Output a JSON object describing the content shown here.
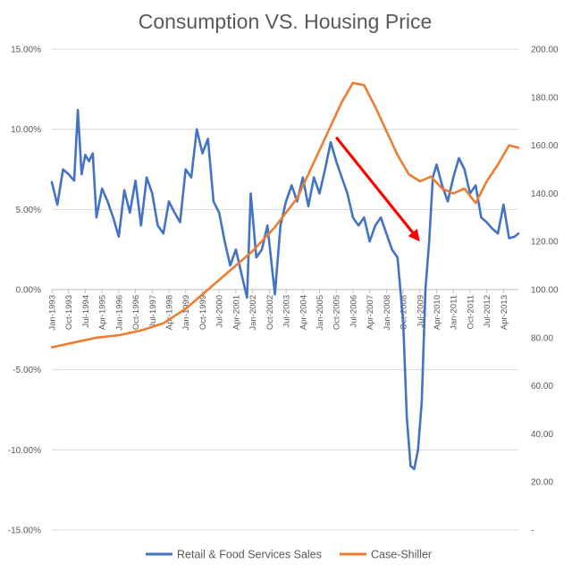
{
  "chart_data": {
    "type": "line",
    "title": "Consumption VS. Housing Price",
    "xlabel": "",
    "ylabel_left": "",
    "ylabel_right": "",
    "x_start": "Jan-1993",
    "x_end": "Dec-2013",
    "x_tick_labels": [
      "Jan-1993",
      "Oct-1993",
      "Jul-1994",
      "Apr-1995",
      "Jan-1996",
      "Oct-1996",
      "Jul-1997",
      "Apr-1998",
      "Jan-1999",
      "Oct-1999",
      "Jul-2000",
      "Apr-2001",
      "Jan-2002",
      "Oct-2002",
      "Jul-2003",
      "Apr-2004",
      "Jan-2005",
      "Oct-2005",
      "Jul-2006",
      "Apr-2007",
      "Jan-2008",
      "Oct-2008",
      "Jul-2009",
      "Apr-2010",
      "Jan-2011",
      "Oct-2011",
      "Jul-2012",
      "Apr-2013"
    ],
    "y_left": {
      "min": -0.15,
      "max": 0.15,
      "ticks": [
        "15.00%",
        "10.00%",
        "5.00%",
        "0.00%",
        "-5.00%",
        "-10.00%",
        "-15.00%"
      ]
    },
    "y_right": {
      "min": 0,
      "max": 200,
      "ticks": [
        "200.00",
        "180.00",
        "160.00",
        "140.00",
        "120.00",
        "100.00",
        "80.00",
        "60.00",
        "40.00",
        "20.00",
        "-"
      ]
    },
    "legend_position": "bottom",
    "grid": "horizontal",
    "annotation": {
      "type": "arrow",
      "color": "#ff0000",
      "from": {
        "x": "Oct-2005",
        "y_left": 0.095
      },
      "to": {
        "x": "Jul-2009",
        "y_left": 0.03
      }
    },
    "series": [
      {
        "name": "Retail & Food Services Sales",
        "axis": "left",
        "color": "#4472c4",
        "points": [
          [
            "Jan-1993",
            0.067
          ],
          [
            "Apr-1993",
            0.053
          ],
          [
            "Jul-1993",
            0.075
          ],
          [
            "Oct-1993",
            0.072
          ],
          [
            "Jan-1994",
            0.068
          ],
          [
            "Mar-1994",
            0.112
          ],
          [
            "May-1994",
            0.072
          ],
          [
            "Jul-1994",
            0.084
          ],
          [
            "Sep-1994",
            0.08
          ],
          [
            "Nov-1994",
            0.085
          ],
          [
            "Jan-1995",
            0.045
          ],
          [
            "Apr-1995",
            0.063
          ],
          [
            "Jul-1995",
            0.055
          ],
          [
            "Oct-1995",
            0.045
          ],
          [
            "Jan-1996",
            0.033
          ],
          [
            "Apr-1996",
            0.062
          ],
          [
            "Jul-1996",
            0.048
          ],
          [
            "Oct-1996",
            0.068
          ],
          [
            "Jan-1997",
            0.04
          ],
          [
            "Apr-1997",
            0.07
          ],
          [
            "Jul-1997",
            0.06
          ],
          [
            "Oct-1997",
            0.04
          ],
          [
            "Jan-1998",
            0.035
          ],
          [
            "Apr-1998",
            0.055
          ],
          [
            "Jul-1998",
            0.048
          ],
          [
            "Oct-1998",
            0.042
          ],
          [
            "Jan-1999",
            0.075
          ],
          [
            "Apr-1999",
            0.07
          ],
          [
            "Jul-1999",
            0.1
          ],
          [
            "Oct-1999",
            0.085
          ],
          [
            "Jan-2000",
            0.094
          ],
          [
            "Apr-2000",
            0.055
          ],
          [
            "Jul-2000",
            0.048
          ],
          [
            "Oct-2000",
            0.03
          ],
          [
            "Jan-2001",
            0.015
          ],
          [
            "Apr-2001",
            0.025
          ],
          [
            "Jul-2001",
            0.01
          ],
          [
            "Oct-2001",
            -0.005
          ],
          [
            "Dec-2001",
            0.06
          ],
          [
            "Mar-2002",
            0.02
          ],
          [
            "Jun-2002",
            0.025
          ],
          [
            "Sep-2002",
            0.04
          ],
          [
            "Jan-2003",
            -0.003
          ],
          [
            "Apr-2003",
            0.04
          ],
          [
            "Jul-2003",
            0.055
          ],
          [
            "Oct-2003",
            0.065
          ],
          [
            "Jan-2004",
            0.055
          ],
          [
            "Apr-2004",
            0.07
          ],
          [
            "Jul-2004",
            0.052
          ],
          [
            "Oct-2004",
            0.07
          ],
          [
            "Jan-2005",
            0.06
          ],
          [
            "Apr-2005",
            0.075
          ],
          [
            "Jul-2005",
            0.092
          ],
          [
            "Oct-2005",
            0.08
          ],
          [
            "Jan-2006",
            0.07
          ],
          [
            "Apr-2006",
            0.06
          ],
          [
            "Jul-2006",
            0.045
          ],
          [
            "Oct-2006",
            0.04
          ],
          [
            "Jan-2007",
            0.045
          ],
          [
            "Apr-2007",
            0.03
          ],
          [
            "Jul-2007",
            0.04
          ],
          [
            "Oct-2007",
            0.045
          ],
          [
            "Jan-2008",
            0.035
          ],
          [
            "Apr-2008",
            0.025
          ],
          [
            "Jul-2008",
            0.02
          ],
          [
            "Oct-2008",
            -0.02
          ],
          [
            "Dec-2008",
            -0.08
          ],
          [
            "Feb-2009",
            -0.11
          ],
          [
            "Apr-2009",
            -0.112
          ],
          [
            "Jun-2009",
            -0.1
          ],
          [
            "Aug-2009",
            -0.07
          ],
          [
            "Oct-2009",
            0.0
          ],
          [
            "Dec-2009",
            0.03
          ],
          [
            "Feb-2010",
            0.07
          ],
          [
            "Apr-2010",
            0.078
          ],
          [
            "Jul-2010",
            0.065
          ],
          [
            "Oct-2010",
            0.055
          ],
          [
            "Jan-2011",
            0.07
          ],
          [
            "Apr-2011",
            0.082
          ],
          [
            "Jul-2011",
            0.075
          ],
          [
            "Oct-2011",
            0.06
          ],
          [
            "Jan-2012",
            0.065
          ],
          [
            "Apr-2012",
            0.045
          ],
          [
            "Jul-2012",
            0.042
          ],
          [
            "Oct-2012",
            0.038
          ],
          [
            "Jan-2013",
            0.035
          ],
          [
            "Apr-2013",
            0.053
          ],
          [
            "Jul-2013",
            0.032
          ],
          [
            "Oct-2013",
            0.033
          ],
          [
            "Dec-2013",
            0.035
          ]
        ]
      },
      {
        "name": "Case-Shiller",
        "axis": "right",
        "color": "#ed7d31",
        "points": [
          [
            "Jan-1993",
            76
          ],
          [
            "Jan-1994",
            78
          ],
          [
            "Jan-1995",
            80
          ],
          [
            "Jan-1996",
            81
          ],
          [
            "Jan-1997",
            83
          ],
          [
            "Jan-1998",
            86
          ],
          [
            "Jan-1999",
            92
          ],
          [
            "Jan-2000",
            100
          ],
          [
            "Jan-2001",
            108
          ],
          [
            "Jan-2002",
            116
          ],
          [
            "Jan-2003",
            126
          ],
          [
            "Jan-2004",
            138
          ],
          [
            "Jan-2005",
            158
          ],
          [
            "Jan-2006",
            178
          ],
          [
            "Jul-2006",
            186
          ],
          [
            "Jan-2007",
            185
          ],
          [
            "Jul-2007",
            176
          ],
          [
            "Jan-2008",
            166
          ],
          [
            "Jul-2008",
            156
          ],
          [
            "Jan-2009",
            148
          ],
          [
            "Jul-2009",
            145
          ],
          [
            "Jan-2010",
            147
          ],
          [
            "Jul-2010",
            142
          ],
          [
            "Jan-2011",
            140
          ],
          [
            "Jul-2011",
            142
          ],
          [
            "Jan-2012",
            136
          ],
          [
            "Jul-2012",
            145
          ],
          [
            "Jan-2013",
            152
          ],
          [
            "Jul-2013",
            160
          ],
          [
            "Dec-2013",
            159
          ]
        ]
      }
    ]
  }
}
